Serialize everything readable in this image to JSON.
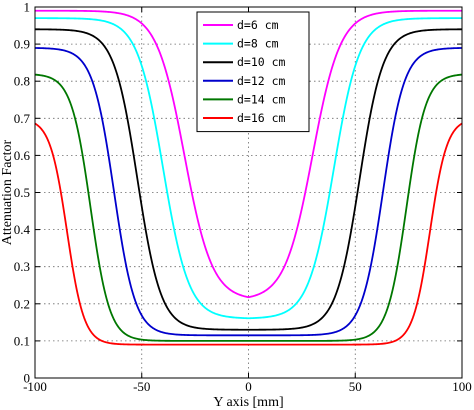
{
  "chart_data": {
    "type": "line",
    "title": "",
    "xlabel": "Y axis [mm]",
    "ylabel": "Attenuation Factor",
    "xlim": [
      -100,
      100
    ],
    "ylim": [
      0,
      1
    ],
    "x_ticks": [
      -100,
      -50,
      0,
      50,
      100
    ],
    "y_ticks": [
      0,
      0.1,
      0.2,
      0.3,
      0.4,
      0.5,
      0.6,
      0.7,
      0.8,
      0.9,
      1
    ],
    "grid": true,
    "legend_position": "top-center",
    "series": [
      {
        "name": "d=6 cm",
        "color": "#ff00ff",
        "edge_value": 0.99,
        "center_value": 0.21,
        "half_width_mm": 30,
        "steepness_mm": 6.5
      },
      {
        "name": "d=8 cm",
        "color": "#00ffff",
        "edge_value": 0.97,
        "center_value": 0.16,
        "half_width_mm": 40,
        "steepness_mm": 6.0
      },
      {
        "name": "d=10 cm",
        "color": "#000000",
        "edge_value": 0.94,
        "center_value": 0.13,
        "half_width_mm": 52,
        "steepness_mm": 5.5
      },
      {
        "name": "d=12 cm",
        "color": "#0000cc",
        "edge_value": 0.89,
        "center_value": 0.115,
        "half_width_mm": 63,
        "steepness_mm": 5.0
      },
      {
        "name": "d=14 cm",
        "color": "#007700",
        "edge_value": 0.82,
        "center_value": 0.1,
        "half_width_mm": 74,
        "steepness_mm": 4.5
      },
      {
        "name": "d=16 cm",
        "color": "#ff0000",
        "edge_value": 0.7,
        "center_value": 0.09,
        "half_width_mm": 85,
        "steepness_mm": 4.0
      }
    ]
  }
}
